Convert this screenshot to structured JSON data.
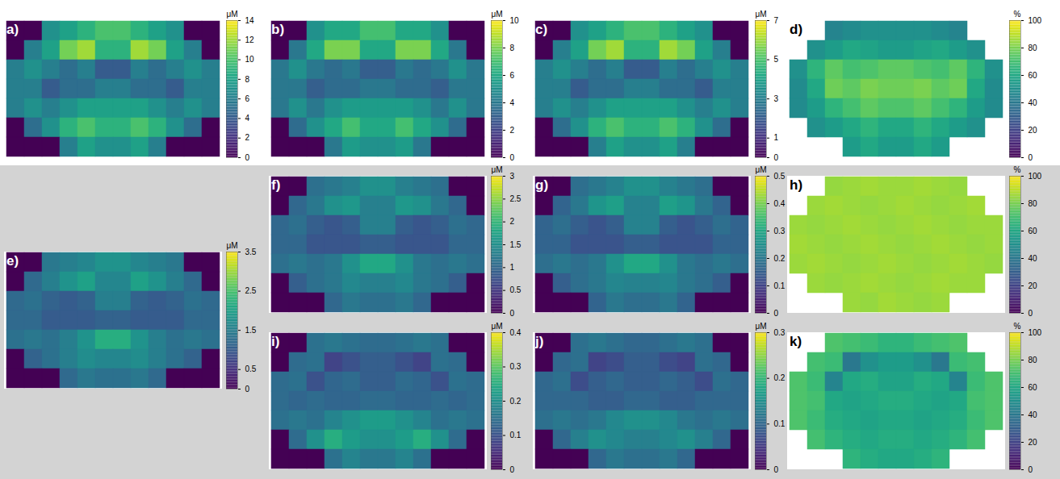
{
  "chart_data": [
    {
      "type": "heatmap",
      "title": "a)",
      "color_label": "μM",
      "color_range": [
        0,
        14
      ],
      "color_ticks": [
        0,
        2,
        4,
        6,
        8,
        10,
        12,
        14
      ],
      "cells": [
        [
          0,
          0,
          7,
          8,
          9,
          10,
          10,
          9,
          8,
          7,
          0,
          0
        ],
        [
          0,
          6,
          8,
          11,
          12,
          9,
          9,
          12,
          11,
          8,
          6,
          0
        ],
        [
          6,
          7,
          6,
          5,
          6,
          4,
          4,
          6,
          5,
          6,
          7,
          6
        ],
        [
          6,
          6,
          4,
          5,
          5,
          6,
          6,
          5,
          5,
          4,
          6,
          6
        ],
        [
          6,
          7,
          6,
          7,
          8,
          8,
          8,
          8,
          7,
          6,
          7,
          6
        ],
        [
          0,
          5,
          7,
          9,
          10,
          9,
          9,
          10,
          9,
          7,
          5,
          0
        ],
        [
          0,
          0,
          0,
          6,
          8,
          7,
          7,
          8,
          6,
          0,
          0,
          0
        ]
      ]
    },
    {
      "type": "heatmap",
      "title": "b)",
      "color_label": "μM",
      "color_range": [
        0,
        10
      ],
      "color_ticks": [
        0,
        2,
        4,
        6,
        8,
        10
      ],
      "cells": [
        [
          0,
          0,
          5,
          6,
          6,
          7,
          7,
          6,
          6,
          5,
          0,
          0
        ],
        [
          0,
          4,
          6,
          8,
          8,
          6,
          6,
          8,
          8,
          6,
          4,
          0
        ],
        [
          4,
          5,
          4,
          3.5,
          4,
          3,
          3,
          4,
          3.5,
          4,
          5,
          4
        ],
        [
          4,
          4,
          3,
          3.5,
          3.5,
          4,
          4,
          3.5,
          3.5,
          3,
          4,
          4
        ],
        [
          4,
          5,
          4,
          5,
          5.5,
          5.5,
          5.5,
          5.5,
          5,
          4,
          5,
          4
        ],
        [
          0,
          3.5,
          5,
          6,
          7,
          6,
          6,
          7,
          6,
          5,
          3.5,
          0
        ],
        [
          0,
          0,
          0,
          4,
          5.5,
          5,
          5,
          5.5,
          4,
          0,
          0,
          0
        ]
      ]
    },
    {
      "type": "heatmap",
      "title": "c)",
      "color_label": "μM",
      "color_range": [
        0,
        7
      ],
      "color_ticks": [
        0,
        1,
        3,
        5,
        7
      ],
      "cells": [
        [
          0,
          0,
          3.5,
          4,
          4.5,
          5,
          5,
          4.5,
          4,
          3.5,
          0,
          0
        ],
        [
          0,
          3,
          4,
          5.5,
          6,
          4.5,
          4.5,
          6,
          5.5,
          4,
          3,
          0
        ],
        [
          3,
          3.5,
          3,
          2.5,
          3,
          2,
          2,
          3,
          2.5,
          3,
          3.5,
          3
        ],
        [
          3,
          3,
          2,
          2.5,
          2.5,
          3,
          3,
          2.5,
          2.5,
          2,
          3,
          3
        ],
        [
          3,
          3.5,
          3,
          3.5,
          4,
          4,
          4,
          4,
          3.5,
          3,
          3.5,
          3
        ],
        [
          0,
          2.5,
          3.5,
          4.5,
          5,
          4.5,
          4.5,
          5,
          4.5,
          3.5,
          2.5,
          0
        ],
        [
          0,
          0,
          0,
          3,
          4,
          3.5,
          3.5,
          4,
          3,
          0,
          0,
          0
        ]
      ]
    },
    {
      "type": "heatmap",
      "title": "d)",
      "color_label": "%",
      "color_range": [
        0,
        100
      ],
      "color_ticks": [
        0,
        20,
        40,
        60,
        80,
        100
      ],
      "cells": [
        [
          null,
          null,
          45,
          48,
          50,
          50,
          50,
          50,
          48,
          45,
          null,
          null
        ],
        [
          null,
          50,
          55,
          60,
          58,
          55,
          55,
          58,
          60,
          55,
          50,
          null
        ],
        [
          50,
          65,
          75,
          70,
          72,
          75,
          75,
          72,
          70,
          75,
          65,
          50
        ],
        [
          48,
          60,
          78,
          75,
          80,
          78,
          78,
          80,
          75,
          78,
          60,
          48
        ],
        [
          48,
          55,
          65,
          70,
          75,
          72,
          72,
          75,
          70,
          65,
          55,
          48
        ],
        [
          null,
          50,
          55,
          60,
          65,
          60,
          60,
          65,
          60,
          55,
          50,
          null
        ],
        [
          null,
          null,
          null,
          55,
          60,
          55,
          55,
          60,
          55,
          null,
          null,
          null
        ]
      ]
    },
    {
      "type": "heatmap",
      "title": "e)",
      "color_label": "μM",
      "color_range": [
        0,
        3.5
      ],
      "color_ticks": [
        0,
        0.5,
        1.5,
        2.5,
        3.5
      ],
      "cells": [
        [
          0,
          0,
          1.4,
          1.5,
          1.6,
          1.8,
          1.8,
          1.6,
          1.5,
          1.4,
          0,
          0
        ],
        [
          0,
          1.2,
          1.5,
          1.8,
          2,
          1.6,
          1.6,
          2,
          1.8,
          1.5,
          1.2,
          0
        ],
        [
          1.2,
          1.3,
          1.1,
          1,
          1.1,
          1.5,
          1.5,
          1.1,
          1,
          1.1,
          1.3,
          1.2
        ],
        [
          1.2,
          1.2,
          1,
          1,
          1,
          1.1,
          1.1,
          1,
          1,
          1,
          1.2,
          1.2
        ],
        [
          1.3,
          1.4,
          1.3,
          1.5,
          1.8,
          2.2,
          2.2,
          1.8,
          1.5,
          1.3,
          1.4,
          1.3
        ],
        [
          0,
          1.1,
          1.3,
          1.5,
          1.7,
          1.6,
          1.6,
          1.7,
          1.5,
          1.3,
          1.1,
          0
        ],
        [
          0,
          0,
          0,
          1.2,
          1.4,
          1.3,
          1.3,
          1.4,
          1.2,
          0,
          0,
          0
        ]
      ]
    },
    {
      "type": "heatmap",
      "title": "f)",
      "color_label": "μM",
      "color_range": [
        0,
        3
      ],
      "color_ticks": [
        0,
        0.5,
        1,
        1.5,
        2,
        2.5,
        3
      ],
      "cells": [
        [
          0,
          0,
          1.1,
          1.2,
          1.3,
          1.5,
          1.5,
          1.3,
          1.2,
          1.1,
          0,
          0
        ],
        [
          0,
          1,
          1.2,
          1.5,
          1.6,
          1.3,
          1.3,
          1.6,
          1.5,
          1.2,
          1,
          0
        ],
        [
          1,
          1.1,
          0.9,
          0.8,
          0.9,
          1.3,
          1.3,
          0.9,
          0.8,
          0.9,
          1.1,
          1
        ],
        [
          1,
          1,
          0.8,
          0.8,
          0.8,
          0.9,
          0.9,
          0.8,
          0.8,
          0.8,
          1,
          1
        ],
        [
          1.1,
          1.2,
          1.1,
          1.2,
          1.5,
          1.8,
          1.8,
          1.5,
          1.2,
          1.1,
          1.2,
          1.1
        ],
        [
          0,
          0.9,
          1.1,
          1.2,
          1.4,
          1.3,
          1.3,
          1.4,
          1.2,
          1.1,
          0.9,
          0
        ],
        [
          0,
          0,
          0,
          1,
          1.2,
          1.1,
          1.1,
          1.2,
          1,
          0,
          0,
          0
        ]
      ]
    },
    {
      "type": "heatmap",
      "title": "g)",
      "color_label": "μM",
      "color_range": [
        0,
        0.5
      ],
      "color_ticks": [
        0,
        0.1,
        0.2,
        0.3,
        0.4,
        0.5
      ],
      "cells": [
        [
          0,
          0,
          0.18,
          0.2,
          0.22,
          0.25,
          0.25,
          0.22,
          0.2,
          0.18,
          0,
          0
        ],
        [
          0,
          0.16,
          0.2,
          0.26,
          0.28,
          0.22,
          0.22,
          0.28,
          0.26,
          0.2,
          0.16,
          0
        ],
        [
          0.16,
          0.18,
          0.15,
          0.13,
          0.15,
          0.22,
          0.22,
          0.15,
          0.13,
          0.15,
          0.18,
          0.16
        ],
        [
          0.16,
          0.16,
          0.13,
          0.13,
          0.13,
          0.15,
          0.15,
          0.13,
          0.13,
          0.13,
          0.16,
          0.16
        ],
        [
          0.18,
          0.2,
          0.18,
          0.2,
          0.25,
          0.3,
          0.3,
          0.25,
          0.2,
          0.18,
          0.2,
          0.18
        ],
        [
          0,
          0.15,
          0.18,
          0.2,
          0.23,
          0.22,
          0.22,
          0.23,
          0.2,
          0.18,
          0.15,
          0
        ],
        [
          0,
          0,
          0,
          0.16,
          0.2,
          0.18,
          0.18,
          0.2,
          0.16,
          0,
          0,
          0
        ]
      ]
    },
    {
      "type": "heatmap",
      "title": "h)",
      "color_label": "%",
      "color_range": [
        0,
        100
      ],
      "color_ticks": [
        0,
        20,
        40,
        60,
        80,
        100
      ],
      "cells": [
        [
          null,
          null,
          84,
          85,
          86,
          85,
          85,
          86,
          85,
          84,
          null,
          null
        ],
        [
          null,
          85,
          86,
          85,
          84,
          85,
          86,
          85,
          84,
          85,
          86,
          null
        ],
        [
          85,
          84,
          85,
          86,
          85,
          84,
          85,
          86,
          85,
          84,
          85,
          85
        ],
        [
          86,
          85,
          84,
          85,
          86,
          85,
          84,
          85,
          86,
          85,
          84,
          85
        ],
        [
          85,
          86,
          85,
          84,
          85,
          86,
          85,
          84,
          85,
          86,
          85,
          84
        ],
        [
          null,
          85,
          84,
          85,
          86,
          85,
          84,
          85,
          86,
          85,
          85,
          null
        ],
        [
          null,
          null,
          null,
          85,
          84,
          86,
          85,
          84,
          85,
          null,
          null,
          null
        ]
      ]
    },
    {
      "type": "heatmap",
      "title": "i)",
      "color_label": "μM",
      "color_range": [
        0,
        0.4
      ],
      "color_ticks": [
        0,
        0.1,
        0.2,
        0.3,
        0.4
      ],
      "cells": [
        [
          0,
          0,
          0.15,
          0.16,
          0.15,
          0.14,
          0.14,
          0.15,
          0.16,
          0.15,
          0,
          0
        ],
        [
          0,
          0.14,
          0.15,
          0.08,
          0.1,
          0.12,
          0.12,
          0.1,
          0.08,
          0.15,
          0.14,
          0
        ],
        [
          0.14,
          0.15,
          0.1,
          0.13,
          0.14,
          0.12,
          0.12,
          0.14,
          0.13,
          0.1,
          0.15,
          0.14
        ],
        [
          0.14,
          0.13,
          0.14,
          0.13,
          0.13,
          0.14,
          0.14,
          0.13,
          0.13,
          0.14,
          0.13,
          0.14
        ],
        [
          0.15,
          0.16,
          0.15,
          0.18,
          0.2,
          0.22,
          0.22,
          0.2,
          0.18,
          0.15,
          0.16,
          0.15
        ],
        [
          0,
          0.14,
          0.2,
          0.25,
          0.22,
          0.2,
          0.2,
          0.22,
          0.25,
          0.2,
          0.14,
          0
        ],
        [
          0,
          0,
          0,
          0.15,
          0.18,
          0.16,
          0.16,
          0.18,
          0.15,
          0,
          0,
          0
        ]
      ]
    },
    {
      "type": "heatmap",
      "title": "j)",
      "color_label": "μM",
      "color_range": [
        0,
        0.3
      ],
      "color_ticks": [
        0,
        0.1,
        0.2,
        0.3
      ],
      "cells": [
        [
          0,
          0,
          0.11,
          0.12,
          0.11,
          0.1,
          0.1,
          0.11,
          0.12,
          0.11,
          0,
          0
        ],
        [
          0,
          0.1,
          0.11,
          0.06,
          0.07,
          0.09,
          0.09,
          0.07,
          0.06,
          0.11,
          0.1,
          0
        ],
        [
          0.1,
          0.11,
          0.07,
          0.09,
          0.1,
          0.09,
          0.09,
          0.1,
          0.09,
          0.07,
          0.11,
          0.1
        ],
        [
          0.1,
          0.1,
          0.1,
          0.09,
          0.09,
          0.1,
          0.1,
          0.09,
          0.09,
          0.1,
          0.1,
          0.1
        ],
        [
          0.11,
          0.12,
          0.11,
          0.12,
          0.14,
          0.15,
          0.15,
          0.14,
          0.12,
          0.11,
          0.12,
          0.11
        ],
        [
          0,
          0.1,
          0.13,
          0.15,
          0.14,
          0.13,
          0.13,
          0.14,
          0.15,
          0.13,
          0.1,
          0
        ],
        [
          0,
          0,
          0,
          0.1,
          0.12,
          0.11,
          0.11,
          0.12,
          0.1,
          0,
          0,
          0
        ]
      ]
    },
    {
      "type": "heatmap",
      "title": "k)",
      "color_label": "%",
      "color_range": [
        0,
        100
      ],
      "color_ticks": [
        0,
        20,
        40,
        60,
        80,
        100
      ],
      "cells": [
        [
          null,
          null,
          72,
          70,
          68,
          65,
          65,
          68,
          70,
          72,
          null,
          null
        ],
        [
          null,
          70,
          68,
          40,
          50,
          55,
          55,
          50,
          40,
          68,
          70,
          null
        ],
        [
          72,
          68,
          45,
          60,
          62,
          58,
          58,
          62,
          60,
          45,
          68,
          72
        ],
        [
          72,
          70,
          60,
          58,
          60,
          62,
          62,
          60,
          58,
          60,
          70,
          72
        ],
        [
          72,
          68,
          62,
          60,
          58,
          60,
          60,
          58,
          60,
          62,
          68,
          72
        ],
        [
          null,
          70,
          65,
          62,
          60,
          62,
          62,
          60,
          62,
          65,
          70,
          null
        ],
        [
          null,
          null,
          null,
          65,
          62,
          60,
          60,
          62,
          65,
          null,
          null,
          null
        ]
      ]
    }
  ]
}
